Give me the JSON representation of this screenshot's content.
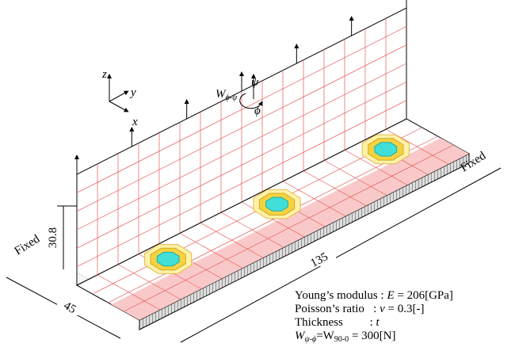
{
  "axes": {
    "z": "z",
    "y": "y",
    "x": "x"
  },
  "load": {
    "symbol": "W",
    "subscript": "ϕ-ψ",
    "psi": "ψ",
    "phi": "ϕ"
  },
  "supports": {
    "left": "Fixed",
    "right": "Fixed"
  },
  "dimensions": {
    "height": "30.8",
    "length": "135",
    "width": "45"
  },
  "properties": [
    {
      "name": "Young’s modulus : ",
      "symbol": "E",
      "value": " = 206[GPa]"
    },
    {
      "name": "Poisson’s ratio   : ",
      "symbol": "ν",
      "value": " = 0.3[-]"
    },
    {
      "name": "Thickness         : ",
      "symbol": "t"
    },
    {
      "symbol": "W",
      "sub1": "ψ-ϕ",
      "mid": "=W",
      "sub2": "90-0",
      "value": " = 300[N]"
    }
  ]
}
